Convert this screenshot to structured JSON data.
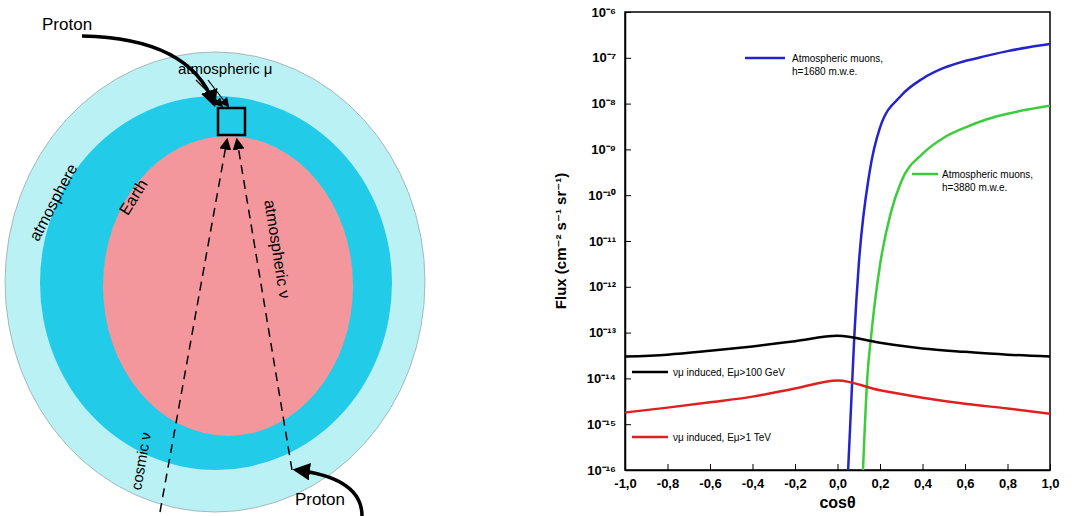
{
  "diagram": {
    "labels": [
      "Proton",
      "atmospheric μ",
      "atmosphere",
      "Earth",
      "atmospheric ν",
      "cosmic ν",
      "Proton"
    ]
  },
  "chart_data": {
    "type": "line",
    "x_label": "cosθ",
    "y_label": "Flux (cm⁻² s⁻¹ sr⁻¹)",
    "log": "y",
    "xlim": [
      -1,
      1
    ],
    "xticks": [
      {
        "value": -1,
        "label": "-1,0"
      },
      {
        "value": -0.8,
        "label": "-0,8"
      },
      {
        "value": -0.6,
        "label": "-0,6"
      },
      {
        "value": -0.4,
        "label": "-0,4"
      },
      {
        "value": -0.2,
        "label": "-0,2"
      },
      {
        "value": 0,
        "label": "0,0"
      },
      {
        "value": 0.2,
        "label": "0,2"
      },
      {
        "value": 0.4,
        "label": "0,4"
      },
      {
        "value": 0.6,
        "label": "0,6"
      },
      {
        "value": 0.8,
        "label": "0,8"
      },
      {
        "value": 1,
        "label": "1,0"
      }
    ],
    "ylim": [
      1e-16,
      1e-06
    ],
    "yticks": [
      {
        "value": 1e-16,
        "label": "10⁻¹⁶"
      },
      {
        "value": 1e-15,
        "label": "10⁻¹⁵"
      },
      {
        "value": 1e-14,
        "label": "10⁻¹⁴"
      },
      {
        "value": 1e-13,
        "label": "10⁻¹³"
      },
      {
        "value": 1e-12,
        "label": "10⁻¹²"
      },
      {
        "value": 1e-11,
        "label": "10⁻¹¹"
      },
      {
        "value": 1e-10,
        "label": "10⁻¹⁰"
      },
      {
        "value": 1e-09,
        "label": "10⁻⁹"
      },
      {
        "value": 1e-08,
        "label": "10⁻⁸"
      },
      {
        "value": 1e-07,
        "label": "10⁻⁷"
      },
      {
        "value": 1e-06,
        "label": "10⁻⁶"
      }
    ],
    "series": [
      {
        "name": "Atmospheric muons, h=1680 m.w.e.",
        "color": "#2424cc",
        "x": [
          0.05,
          0.06,
          0.08,
          0.1,
          0.15,
          0.2,
          0.3,
          0.4,
          0.5,
          0.6,
          0.7,
          0.8,
          0.9,
          1.0
        ],
        "values": [
          1e-16,
          1e-15,
          1e-13,
          3e-12,
          3e-10,
          3e-09,
          1.5e-08,
          3.5e-08,
          6e-08,
          8.5e-08,
          1.1e-07,
          1.4e-07,
          1.7e-07,
          2e-07
        ]
      },
      {
        "name": "Atmospheric muons, h=3880 m.w.e.",
        "color": "#3ccc3c",
        "x": [
          0.12,
          0.14,
          0.16,
          0.2,
          0.25,
          0.3,
          0.4,
          0.5,
          0.6,
          0.7,
          0.8,
          0.9,
          1.0
        ],
        "values": [
          1e-16,
          1e-14,
          1e-13,
          3e-12,
          4e-11,
          2e-10,
          8e-10,
          1.8e-09,
          3e-09,
          4.5e-09,
          6e-09,
          7.5e-09,
          9e-09
        ]
      },
      {
        "name": "νμ induced, Eμ>100 GeV",
        "color": "#000000",
        "x": [
          -1,
          -0.8,
          -0.6,
          -0.4,
          -0.2,
          0,
          0.2,
          0.4,
          0.6,
          0.8,
          1
        ],
        "values": [
          3e-14,
          3.3e-14,
          4e-14,
          5e-14,
          6.5e-14,
          8.5e-14,
          6e-14,
          4.5e-14,
          3.8e-14,
          3.3e-14,
          3e-14
        ]
      },
      {
        "name": "νμ induced, Eμ>1 TeV",
        "color": "#e02020",
        "x": [
          -1,
          -0.8,
          -0.6,
          -0.4,
          -0.2,
          0,
          0.2,
          0.4,
          0.6,
          0.8,
          1
        ],
        "values": [
          1.8e-15,
          2.3e-15,
          3e-15,
          4e-15,
          6e-15,
          9e-15,
          5.5e-15,
          3.8e-15,
          2.8e-15,
          2.2e-15,
          1.7e-15
        ]
      }
    ]
  }
}
